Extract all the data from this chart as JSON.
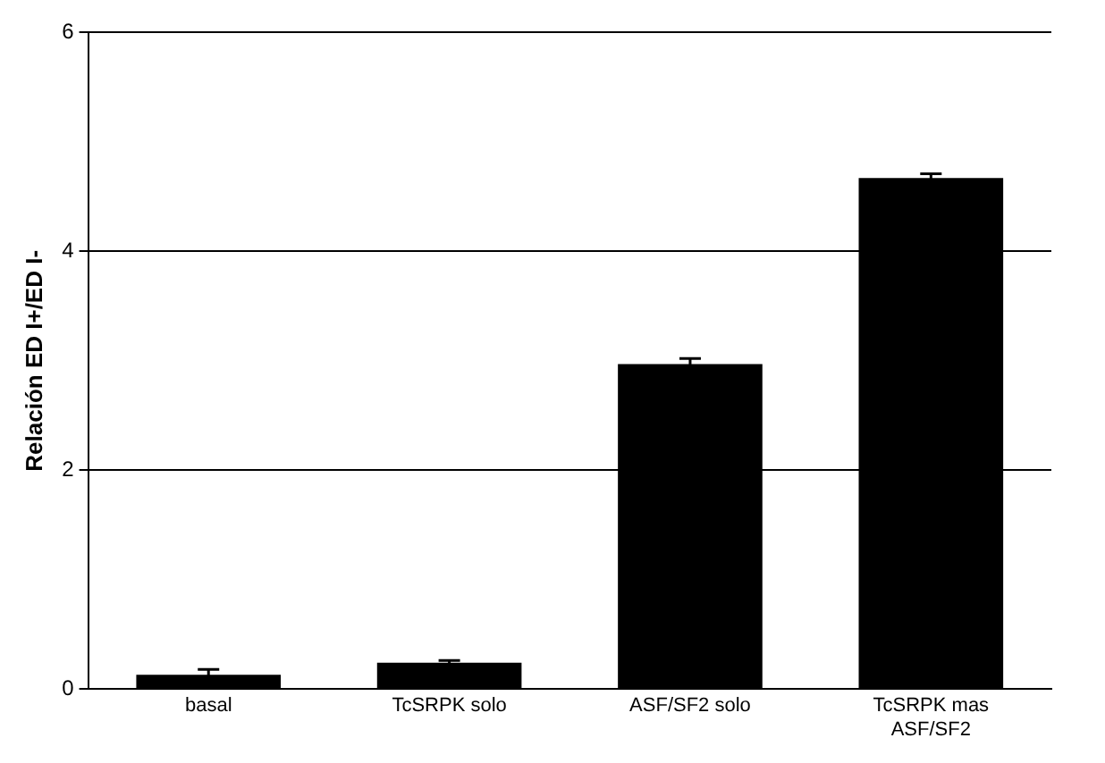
{
  "chart_data": {
    "type": "bar",
    "ylabel": "Relación ED I+/ED I-",
    "categories": [
      "basal",
      "TcSRPK solo",
      "ASF/SF2 solo",
      "TcSRPK mas ASF/SF2"
    ],
    "values": [
      0.13,
      0.24,
      2.97,
      4.67
    ],
    "errors": [
      0.05,
      0.02,
      0.05,
      0.04
    ],
    "color": "#000000",
    "ylim": [
      0,
      6
    ],
    "yticks": [
      0,
      2,
      4,
      6
    ],
    "grid": "y",
    "legend": false
  }
}
